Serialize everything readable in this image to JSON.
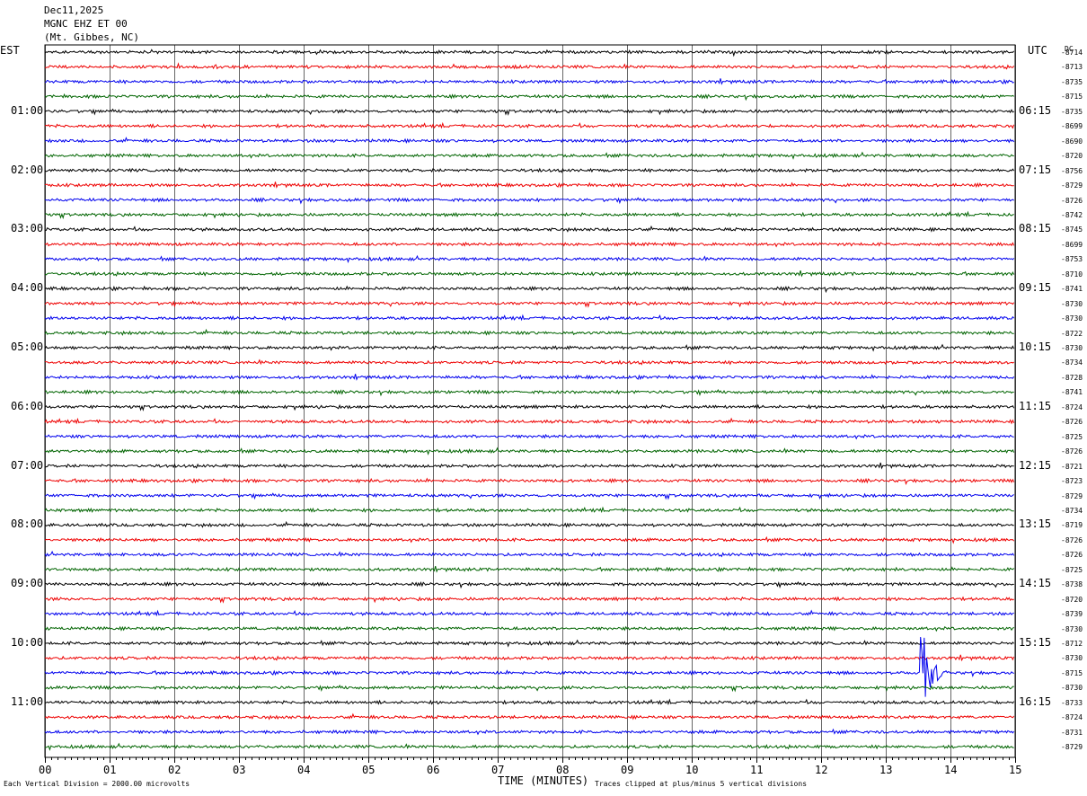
{
  "header": {
    "date": "Dec11,2025",
    "station": "MGNC EHZ ET 00",
    "location": "(Mt. Gibbes, NC)"
  },
  "left_tz": "EST",
  "right_tz": "UTC",
  "dc_label": "DC",
  "chart_data": {
    "type": "line",
    "title": "",
    "xlabel": "TIME (MINUTES)",
    "ylabel": "",
    "xlim": [
      0,
      15
    ],
    "x_ticks": [
      "00",
      "01",
      "02",
      "03",
      "04",
      "05",
      "06",
      "07",
      "08",
      "09",
      "10",
      "11",
      "12",
      "13",
      "14",
      "15"
    ],
    "left_hour_labels": [
      "01:00",
      "02:00",
      "03:00",
      "04:00",
      "05:00",
      "06:00",
      "07:00",
      "08:00",
      "09:00",
      "10:00",
      "11:00"
    ],
    "right_hour_labels": [
      "06:15",
      "07:15",
      "08:15",
      "09:15",
      "10:15",
      "11:15",
      "12:15",
      "13:15",
      "14:15",
      "15:15",
      "16:15"
    ],
    "trace_colors": [
      "#000000",
      "#ee0000",
      "#0000ee",
      "#006400"
    ],
    "dc_offsets": [
      "-8714",
      "-8713",
      "-8735",
      "-8715",
      "-8735",
      "-8699",
      "-8690",
      "-8720",
      "-8756",
      "-8729",
      "-8726",
      "-8742",
      "-8745",
      "-8699",
      "-8753",
      "-8710",
      "-8741",
      "-8730",
      "-8730",
      "-8722",
      "-8730",
      "-8734",
      "-8728",
      "-8741",
      "-8724",
      "-8726",
      "-8725",
      "-8726",
      "-8721",
      "-8723",
      "-8729",
      "-8734",
      "-8719",
      "-8726",
      "-8726",
      "-8725",
      "-8738",
      "-8720",
      "-8739",
      "-8730",
      "-8712",
      "-8730",
      "-8715",
      "-8730",
      "-8733",
      "-8724",
      "-8731",
      "-8729"
    ],
    "scale_note": "Each Vertical Division = 2000.00 microvolts",
    "clip_note": "Traces clipped at plus/minus 5 vertical divisions",
    "notable_events": [
      {
        "trace": 42,
        "minute": 13.55,
        "amplitude": 4.0
      }
    ]
  }
}
